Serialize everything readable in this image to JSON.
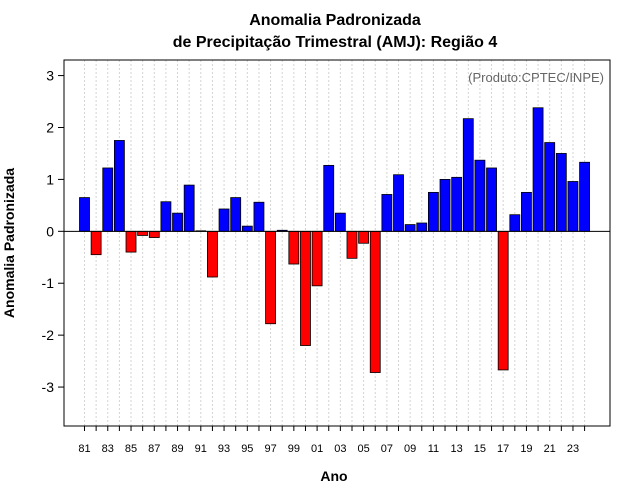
{
  "chart_data": {
    "type": "bar",
    "title_line1": "Anomalia Padronizada",
    "title_line2": "de Precipitação Trimestral (AMJ): Região 4",
    "xlabel": "Ano",
    "ylabel": "Anomalia Padronizada",
    "annotation": "(Produto:CPTEC/INPE)",
    "ylim": [
      -3.75,
      3.3
    ],
    "yticks": [
      {
        "value": 3,
        "label": "3"
      },
      {
        "value": 2,
        "label": "2"
      },
      {
        "value": 1,
        "label": "1"
      },
      {
        "value": 0,
        "label": "0"
      },
      {
        "value": -1,
        "label": "-1"
      },
      {
        "value": -2,
        "label": "-2"
      },
      {
        "value": -3,
        "label": "-3"
      }
    ],
    "years": [
      1981,
      1982,
      1983,
      1984,
      1985,
      1986,
      1987,
      1988,
      1989,
      1990,
      1991,
      1992,
      1993,
      1994,
      1995,
      1996,
      1997,
      1998,
      1999,
      2000,
      2001,
      2002,
      2003,
      2004,
      2005,
      2006,
      2007,
      2008,
      2009,
      2010,
      2011,
      2012,
      2013,
      2014,
      2015,
      2016,
      2017,
      2018,
      2019,
      2020,
      2021,
      2022,
      2023,
      2024
    ],
    "values": [
      0.65,
      -0.45,
      1.22,
      1.75,
      -0.4,
      -0.08,
      -0.12,
      0.57,
      0.35,
      0.89,
      0.01,
      -0.88,
      0.43,
      0.65,
      0.1,
      0.56,
      -1.78,
      0.02,
      -0.63,
      -2.2,
      -1.05,
      1.27,
      0.35,
      -0.52,
      -0.23,
      -2.72,
      0.71,
      1.09,
      0.13,
      0.16,
      0.75,
      1.0,
      1.04,
      2.17,
      1.37,
      1.22,
      -2.67,
      0.32,
      0.75,
      2.38,
      1.71,
      1.5,
      0.96,
      1.33
    ],
    "xtick_labels": [
      "81",
      "83",
      "85",
      "87",
      "89",
      "91",
      "93",
      "95",
      "97",
      "99",
      "01",
      "03",
      "05",
      "07",
      "09",
      "11",
      "13",
      "15",
      "17",
      "19",
      "21",
      "23"
    ],
    "colors": {
      "positive": "#0000ff",
      "negative": "#ff0000",
      "zero_line": "#000000",
      "grid": "#d3d3d3",
      "frame": "#000000"
    }
  }
}
